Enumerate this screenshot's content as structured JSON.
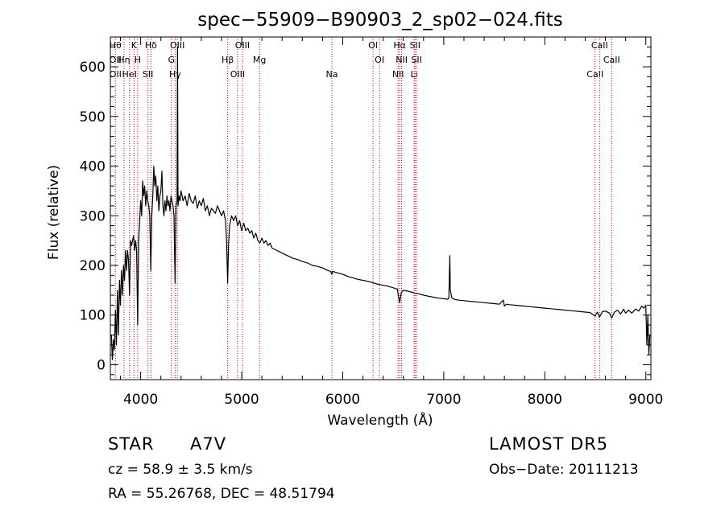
{
  "chart_data": {
    "type": "line",
    "title": "spec−55909−B90903_2_sp02−024.fits",
    "xlabel": "Wavelength (Å)",
    "ylabel": "Flux (relative)",
    "xlim": [
      3700,
      9050
    ],
    "ylim": [
      -30,
      660
    ],
    "xticks": [
      4000,
      5000,
      6000,
      7000,
      8000,
      9000
    ],
    "xtick_labels": [
      "4000",
      "5000",
      "6000",
      "7000",
      "8000",
      "9000"
    ],
    "yticks": [
      0,
      100,
      200,
      300,
      400,
      500,
      600
    ],
    "ytick_labels": [
      "0",
      "100",
      "200",
      "300",
      "400",
      "500",
      "600"
    ],
    "line_color": "#000000",
    "line_marker_color": "#cc0000",
    "grid": false,
    "series": [
      {
        "values": [
          [
            3710,
            60
          ],
          [
            3720,
            10
          ],
          [
            3730,
            50
          ],
          [
            3740,
            30
          ],
          [
            3750,
            110
          ],
          [
            3760,
            40
          ],
          [
            3770,
            150
          ],
          [
            3780,
            60
          ],
          [
            3790,
            170
          ],
          [
            3800,
            120
          ],
          [
            3810,
            190
          ],
          [
            3820,
            140
          ],
          [
            3830,
            200
          ],
          [
            3840,
            170
          ],
          [
            3850,
            230
          ],
          [
            3860,
            190
          ],
          [
            3870,
            230
          ],
          [
            3880,
            210
          ],
          [
            3890,
            140
          ],
          [
            3900,
            250
          ],
          [
            3910,
            240
          ],
          [
            3920,
            250
          ],
          [
            3930,
            260
          ],
          [
            3940,
            230
          ],
          [
            3950,
            250
          ],
          [
            3960,
            230
          ],
          [
            3970,
            80
          ],
          [
            3980,
            250
          ],
          [
            3990,
            290
          ],
          [
            4000,
            330
          ],
          [
            4010,
            300
          ],
          [
            4020,
            370
          ],
          [
            4030,
            340
          ],
          [
            4040,
            360
          ],
          [
            4050,
            320
          ],
          [
            4060,
            350
          ],
          [
            4070,
            330
          ],
          [
            4080,
            320
          ],
          [
            4090,
            300
          ],
          [
            4100,
            190
          ],
          [
            4110,
            300
          ],
          [
            4120,
            340
          ],
          [
            4130,
            400
          ],
          [
            4140,
            360
          ],
          [
            4150,
            380
          ],
          [
            4160,
            330
          ],
          [
            4170,
            360
          ],
          [
            4180,
            310
          ],
          [
            4190,
            340
          ],
          [
            4200,
            350
          ],
          [
            4210,
            390
          ],
          [
            4220,
            320
          ],
          [
            4230,
            300
          ],
          [
            4240,
            330
          ],
          [
            4250,
            310
          ],
          [
            4260,
            340
          ],
          [
            4270,
            320
          ],
          [
            4280,
            330
          ],
          [
            4290,
            310
          ],
          [
            4300,
            340
          ],
          [
            4310,
            330
          ],
          [
            4320,
            320
          ],
          [
            4330,
            300
          ],
          [
            4340,
            165
          ],
          [
            4350,
            320
          ],
          [
            4360,
            330
          ],
          [
            4365,
            640
          ],
          [
            4370,
            320
          ],
          [
            4380,
            340
          ],
          [
            4390,
            330
          ],
          [
            4400,
            350
          ],
          [
            4420,
            330
          ],
          [
            4440,
            340
          ],
          [
            4460,
            320
          ],
          [
            4480,
            345
          ],
          [
            4500,
            330
          ],
          [
            4520,
            325
          ],
          [
            4540,
            340
          ],
          [
            4560,
            315
          ],
          [
            4580,
            330
          ],
          [
            4600,
            320
          ],
          [
            4620,
            335
          ],
          [
            4640,
            310
          ],
          [
            4660,
            320
          ],
          [
            4680,
            300
          ],
          [
            4700,
            315
          ],
          [
            4720,
            310
          ],
          [
            4740,
            305
          ],
          [
            4760,
            320
          ],
          [
            4780,
            310
          ],
          [
            4800,
            300
          ],
          [
            4820,
            310
          ],
          [
            4840,
            290
          ],
          [
            4850,
            250
          ],
          [
            4861,
            165
          ],
          [
            4870,
            240
          ],
          [
            4880,
            280
          ],
          [
            4900,
            300
          ],
          [
            4920,
            290
          ],
          [
            4940,
            300
          ],
          [
            4960,
            280
          ],
          [
            4980,
            290
          ],
          [
            5000,
            270
          ],
          [
            5020,
            285
          ],
          [
            5040,
            270
          ],
          [
            5060,
            275
          ],
          [
            5080,
            265
          ],
          [
            5100,
            270
          ],
          [
            5120,
            255
          ],
          [
            5140,
            265
          ],
          [
            5160,
            250
          ],
          [
            5180,
            245
          ],
          [
            5200,
            255
          ],
          [
            5220,
            245
          ],
          [
            5240,
            250
          ],
          [
            5260,
            240
          ],
          [
            5280,
            245
          ],
          [
            5300,
            235
          ],
          [
            5350,
            230
          ],
          [
            5400,
            225
          ],
          [
            5450,
            220
          ],
          [
            5500,
            215
          ],
          [
            5550,
            212
          ],
          [
            5600,
            208
          ],
          [
            5650,
            205
          ],
          [
            5700,
            200
          ],
          [
            5750,
            198
          ],
          [
            5800,
            195
          ],
          [
            5850,
            190
          ],
          [
            5880,
            188
          ],
          [
            5893,
            182
          ],
          [
            5900,
            188
          ],
          [
            5950,
            185
          ],
          [
            6000,
            182
          ],
          [
            6050,
            178
          ],
          [
            6100,
            175
          ],
          [
            6150,
            172
          ],
          [
            6200,
            170
          ],
          [
            6250,
            168
          ],
          [
            6300,
            165
          ],
          [
            6350,
            162
          ],
          [
            6400,
            160
          ],
          [
            6450,
            158
          ],
          [
            6500,
            155
          ],
          [
            6540,
            152
          ],
          [
            6563,
            125
          ],
          [
            6580,
            145
          ],
          [
            6600,
            150
          ],
          [
            6650,
            148
          ],
          [
            6700,
            145
          ],
          [
            6750,
            143
          ],
          [
            6800,
            140
          ],
          [
            6850,
            138
          ],
          [
            6900,
            136
          ],
          [
            6950,
            134
          ],
          [
            7000,
            133
          ],
          [
            7040,
            132
          ],
          [
            7050,
            135
          ],
          [
            7060,
            220
          ],
          [
            7065,
            150
          ],
          [
            7080,
            135
          ],
          [
            7100,
            132
          ],
          [
            7150,
            130
          ],
          [
            7200,
            129
          ],
          [
            7250,
            128
          ],
          [
            7300,
            127
          ],
          [
            7350,
            126
          ],
          [
            7400,
            125
          ],
          [
            7450,
            124
          ],
          [
            7500,
            123
          ],
          [
            7550,
            122
          ],
          [
            7590,
            130
          ],
          [
            7600,
            118
          ],
          [
            7620,
            122
          ],
          [
            7650,
            121
          ],
          [
            7700,
            120
          ],
          [
            7750,
            119
          ],
          [
            7800,
            118
          ],
          [
            7850,
            117
          ],
          [
            7900,
            116
          ],
          [
            7950,
            115
          ],
          [
            8000,
            114
          ],
          [
            8050,
            113
          ],
          [
            8100,
            112
          ],
          [
            8150,
            111
          ],
          [
            8200,
            110
          ],
          [
            8250,
            109
          ],
          [
            8300,
            108
          ],
          [
            8350,
            107
          ],
          [
            8400,
            106
          ],
          [
            8450,
            105
          ],
          [
            8498,
            98
          ],
          [
            8520,
            106
          ],
          [
            8542,
            96
          ],
          [
            8570,
            107
          ],
          [
            8600,
            108
          ],
          [
            8640,
            104
          ],
          [
            8662,
            94
          ],
          [
            8690,
            106
          ],
          [
            8720,
            110
          ],
          [
            8750,
            102
          ],
          [
            8780,
            112
          ],
          [
            8800,
            104
          ],
          [
            8830,
            110
          ],
          [
            8860,
            104
          ],
          [
            8900,
            112
          ],
          [
            8930,
            108
          ],
          [
            8960,
            118
          ],
          [
            8980,
            114
          ],
          [
            9000,
            120
          ],
          [
            9010,
            40
          ],
          [
            9020,
            100
          ],
          [
            9030,
            20
          ],
          [
            9040,
            60
          ]
        ]
      }
    ],
    "lines": [
      {
        "x": 3750,
        "labels": [
          "Hθ",
          "OII",
          "OII"
        ]
      },
      {
        "x": 3835,
        "labels": [
          "Hη"
        ]
      },
      {
        "x": 3889,
        "labels": [
          "HeI"
        ]
      },
      {
        "x": 3934,
        "labels": [
          "K"
        ]
      },
      {
        "x": 3970,
        "labels": [
          "H"
        ]
      },
      {
        "x": 4072,
        "labels": [
          "SII"
        ]
      },
      {
        "x": 4102,
        "labels": [
          "Hδ"
        ]
      },
      {
        "x": 4304,
        "labels": [
          "G"
        ]
      },
      {
        "x": 4341,
        "labels": [
          "Hγ"
        ]
      },
      {
        "x": 4363,
        "labels": [
          "OIII"
        ]
      },
      {
        "x": 4861,
        "labels": [
          "Hβ"
        ]
      },
      {
        "x": 4959,
        "labels": [
          "OIII"
        ]
      },
      {
        "x": 5007,
        "labels": [
          "OIII"
        ]
      },
      {
        "x": 5176,
        "labels": [
          "Mg"
        ]
      },
      {
        "x": 5893,
        "labels": [
          "Na"
        ]
      },
      {
        "x": 6300,
        "labels": [
          "OI"
        ]
      },
      {
        "x": 6364,
        "labels": [
          "OI"
        ]
      },
      {
        "x": 6548,
        "labels": [
          "NII"
        ]
      },
      {
        "x": 6563,
        "labels": [
          "Hα"
        ]
      },
      {
        "x": 6583,
        "labels": [
          "NII"
        ]
      },
      {
        "x": 6707,
        "labels": [
          "Li"
        ]
      },
      {
        "x": 6716,
        "labels": [
          "SII"
        ]
      },
      {
        "x": 6731,
        "labels": [
          "SII"
        ]
      },
      {
        "x": 8498,
        "labels": [
          "CaII"
        ]
      },
      {
        "x": 8542,
        "labels": [
          "CaII"
        ]
      },
      {
        "x": 8662,
        "labels": [
          "CaII"
        ]
      }
    ]
  },
  "info": {
    "class": "STAR",
    "subclass": "A7V",
    "survey": "LAMOST DR5",
    "cz": "cz = 58.9 ± 3.5 km/s",
    "obs_date": "Obs−Date: 20111213",
    "radec": "RA =  55.26768, DEC =  48.51794"
  }
}
